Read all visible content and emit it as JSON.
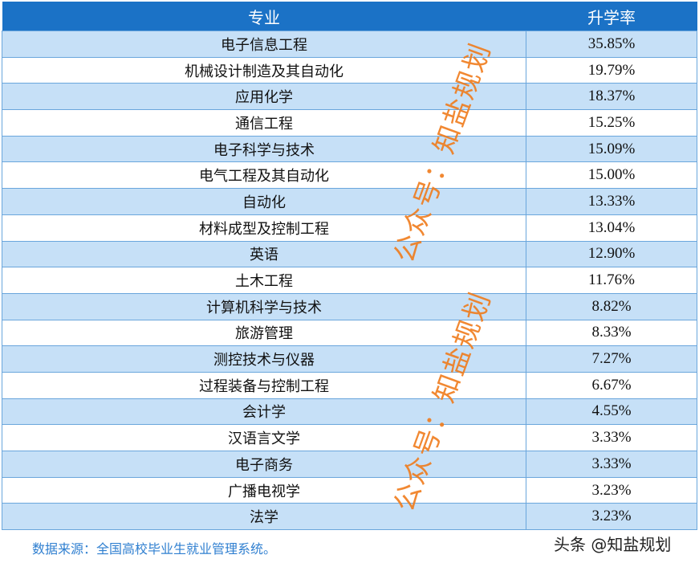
{
  "table": {
    "headers": [
      "专业",
      "升学率"
    ],
    "rows": [
      {
        "major": "电子信息工程",
        "rate": "35.85%"
      },
      {
        "major": "机械设计制造及其自动化",
        "rate": "19.79%"
      },
      {
        "major": "应用化学",
        "rate": "18.37%"
      },
      {
        "major": "通信工程",
        "rate": "15.25%"
      },
      {
        "major": "电子科学与技术",
        "rate": "15.09%"
      },
      {
        "major": "电气工程及其自动化",
        "rate": "15.00%"
      },
      {
        "major": "自动化",
        "rate": "13.33%"
      },
      {
        "major": "材料成型及控制工程",
        "rate": "13.04%"
      },
      {
        "major": "英语",
        "rate": "12.90%"
      },
      {
        "major": "土木工程",
        "rate": "11.76%"
      },
      {
        "major": "计算机科学与技术",
        "rate": "8.82%"
      },
      {
        "major": "旅游管理",
        "rate": "8.33%"
      },
      {
        "major": "测控技术与仪器",
        "rate": "7.27%"
      },
      {
        "major": "过程装备与控制工程",
        "rate": "6.67%"
      },
      {
        "major": "会计学",
        "rate": "4.55%"
      },
      {
        "major": "汉语言文学",
        "rate": "3.33%"
      },
      {
        "major": "电子商务",
        "rate": "3.33%"
      },
      {
        "major": "广播电视学",
        "rate": "3.23%"
      },
      {
        "major": "法学",
        "rate": "3.23%"
      }
    ]
  },
  "source": "数据来源：全国高校毕业生就业管理系统。",
  "watermarks": [
    "公众号：知盐规划",
    "公众号：知盐规划"
  ],
  "brand": "头条 @知盐规划",
  "colors": {
    "header": "#1b72c6",
    "row_alt": "#c6e0f7",
    "watermark": "#f07c1c"
  }
}
